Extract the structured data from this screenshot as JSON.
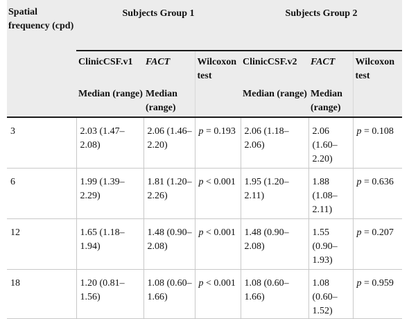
{
  "header": {
    "spatial_frequency": "Spatial frequency (cpd)",
    "group1": "Subjects Group 1",
    "group2": "Subjects Group 2",
    "col_clinic_v1": "ClinicCSF.v1",
    "col_fact_1": "FACT",
    "col_wilcoxon_1": "Wilcoxon test",
    "col_clinic_v2": "ClinicCSF.v2",
    "col_fact_2": "FACT",
    "col_wilcoxon_2": "Wilcoxon test",
    "median_range": "Median (range)"
  },
  "rows": [
    {
      "freq": "3",
      "clinic_v1": "2.03 (1.47–2.08)",
      "fact1": "2.06 (1.46–2.20)",
      "p1_sym": "p",
      "p1_val": " = 0.193",
      "clinic_v2": "2.06 (1.18–2.06)",
      "fact2": "2.06 (1.60–2.20)",
      "p2_sym": "p",
      "p2_val": " = 0.108"
    },
    {
      "freq": "6",
      "clinic_v1": "1.99 (1.39–2.29)",
      "fact1": "1.81 (1.20–2.26)",
      "p1_sym": "p",
      "p1_val": " < 0.001",
      "clinic_v2": "1.95 (1.20–2.11)",
      "fact2": "1.88 (1.08–2.11)",
      "p2_sym": "p",
      "p2_val": " = 0.636"
    },
    {
      "freq": "12",
      "clinic_v1": "1.65 (1.18–1.94)",
      "fact1": "1.48 (0.90–2.08)",
      "p1_sym": "p",
      "p1_val": " < 0.001",
      "clinic_v2": "1.48 (0.90–2.08)",
      "fact2": "1.55 (0.90–1.93)",
      "p2_sym": "p",
      "p2_val": " = 0.207"
    },
    {
      "freq": "18",
      "clinic_v1": "1.20 (0.81–1.56)",
      "fact1": "1.08 (0.60–1.66)",
      "p1_sym": "p",
      "p1_val": " < 0.001",
      "clinic_v2": "1.08 (0.60–1.66)",
      "fact2": "1.08 (0.60–1.52)",
      "p2_sym": "p",
      "p2_val": " = 0.959"
    }
  ]
}
